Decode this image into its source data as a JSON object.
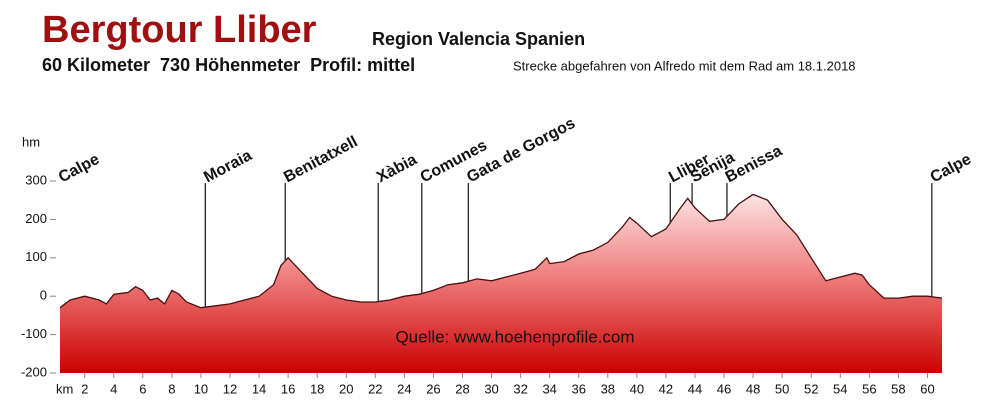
{
  "chart_data": {
    "type": "area",
    "title": "Bergtour Lliber",
    "subtitle": "Region Valencia Spanien",
    "summary": "60 Kilometer  730 Höhenmeter  Profil: mittel",
    "note": "Strecke abgefahren von Alfredo mit dem Rad am 18.1.2018",
    "source": "Quelle: www.hoehenprofile.com",
    "x_label": "km",
    "y_label": "hm",
    "color": "#cc0000",
    "line_color": "#4a1010",
    "x": [
      0.3,
      1,
      2,
      3,
      3.5,
      4,
      5,
      5.5,
      6,
      6.5,
      7,
      7.5,
      8,
      8.5,
      9,
      10,
      11,
      12,
      13,
      14,
      15,
      15.5,
      16,
      17,
      18,
      19,
      20,
      21,
      22,
      23,
      24,
      25,
      26,
      27,
      28,
      29,
      30,
      31,
      32,
      33,
      33.8,
      34,
      35,
      36,
      37,
      38,
      39,
      39.5,
      40,
      41,
      42,
      43,
      43.5,
      44,
      45,
      46,
      47,
      48,
      49,
      50,
      51,
      52,
      53,
      54,
      55,
      55.5,
      56,
      57,
      58,
      59,
      60,
      61
    ],
    "values": [
      -30,
      -10,
      0,
      -10,
      -20,
      5,
      10,
      25,
      15,
      -10,
      -5,
      -20,
      15,
      5,
      -15,
      -30,
      -25,
      -20,
      -10,
      0,
      30,
      80,
      100,
      60,
      20,
      0,
      -10,
      -15,
      -15,
      -10,
      0,
      5,
      15,
      30,
      35,
      45,
      40,
      50,
      60,
      70,
      100,
      85,
      90,
      110,
      120,
      140,
      180,
      205,
      190,
      155,
      175,
      230,
      255,
      230,
      195,
      200,
      240,
      265,
      250,
      200,
      160,
      100,
      40,
      50,
      60,
      55,
      30,
      -5,
      -5,
      0,
      0,
      -5
    ],
    "waypoints": [
      {
        "name": "Calpe",
        "km": 0.3
      },
      {
        "name": "Moraia",
        "km": 10.3
      },
      {
        "name": "Benitatxell",
        "km": 15.8
      },
      {
        "name": "Xàbia",
        "km": 22.2
      },
      {
        "name": "Comunes",
        "km": 25.2
      },
      {
        "name": "Gata de Gorgos",
        "km": 28.4
      },
      {
        "name": "Lliber",
        "km": 42.3
      },
      {
        "name": "Senija",
        "km": 43.8
      },
      {
        "name": "Benissa",
        "km": 46.2
      },
      {
        "name": "Calpe",
        "km": 60.3
      }
    ],
    "xlim": [
      0.3,
      61
    ],
    "ylim": [
      -200,
      300
    ],
    "xticks": [
      2,
      4,
      6,
      8,
      10,
      12,
      14,
      16,
      18,
      20,
      22,
      24,
      26,
      28,
      30,
      32,
      34,
      36,
      38,
      40,
      42,
      44,
      46,
      48,
      50,
      52,
      54,
      56,
      58,
      60
    ],
    "yticks": [
      300,
      200,
      100,
      0,
      -100,
      -200
    ]
  }
}
